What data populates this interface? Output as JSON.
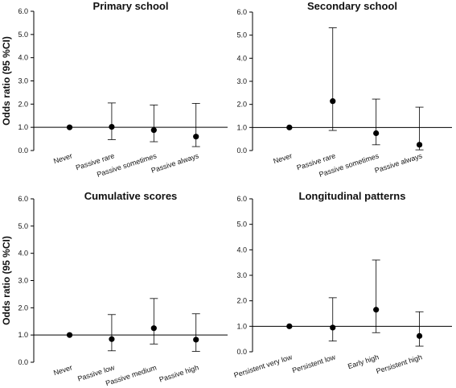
{
  "chart_data": [
    {
      "type": "scatter",
      "title": "Primary school",
      "ylabel": "Odds ratio (95 %CI)",
      "xlabel": "",
      "ylim": [
        0,
        6
      ],
      "yticks": [
        "0.0",
        "1.0",
        "2.0",
        "3.0",
        "4.0",
        "5.0",
        "6.0"
      ],
      "reference_line": 1.0,
      "grid": false,
      "categories": [
        "Never",
        "Passive rare",
        "Passive sometimes",
        "Passive always"
      ],
      "values": [
        1.0,
        1.02,
        0.88,
        0.6
      ],
      "ci_lower": [
        1.0,
        0.47,
        0.38,
        0.17
      ],
      "ci_upper": [
        1.0,
        2.05,
        1.96,
        2.03
      ]
    },
    {
      "type": "scatter",
      "title": "Secondary school",
      "ylabel": "",
      "xlabel": "",
      "ylim": [
        0,
        6
      ],
      "yticks": [
        "0.0",
        "1.0",
        "2.0",
        "3.0",
        "4.0",
        "5.0",
        "6.0"
      ],
      "reference_line": 1.0,
      "grid": false,
      "categories": [
        "Never",
        "Passive rare",
        "Passive sometimes",
        "Passive always"
      ],
      "values": [
        1.0,
        2.14,
        0.75,
        0.25
      ],
      "ci_lower": [
        1.0,
        0.87,
        0.25,
        0.03
      ],
      "ci_upper": [
        1.0,
        5.32,
        2.23,
        1.88
      ]
    },
    {
      "type": "scatter",
      "title": "Cumulative scores",
      "ylabel": "Odds ratio (95 %CI)",
      "xlabel": "",
      "ylim": [
        0,
        6
      ],
      "yticks": [
        "0.0",
        "1.0",
        "2.0",
        "3.0",
        "4.0",
        "5.0",
        "6.0"
      ],
      "reference_line": 1.0,
      "grid": false,
      "categories": [
        "Never",
        "Passive low",
        "Passive medium",
        "Passive high"
      ],
      "values": [
        1.0,
        0.85,
        1.25,
        0.83
      ],
      "ci_lower": [
        1.0,
        0.42,
        0.67,
        0.4
      ],
      "ci_upper": [
        1.0,
        1.75,
        2.34,
        1.78
      ]
    },
    {
      "type": "scatter",
      "title": "Longitudinal patterns",
      "ylabel": "",
      "xlabel": "",
      "ylim": [
        0,
        6
      ],
      "yticks": [
        "0.0",
        "1.0",
        "2.0",
        "3.0",
        "4.0",
        "5.0",
        "6.0"
      ],
      "reference_line": 1.0,
      "grid": false,
      "categories": [
        "Persistent very low",
        "Persistent low",
        "Early high",
        "Persistent high"
      ],
      "values": [
        1.0,
        0.95,
        1.65,
        0.62
      ],
      "ci_lower": [
        1.0,
        0.42,
        0.75,
        0.22
      ],
      "ci_upper": [
        1.0,
        2.12,
        3.6,
        1.57
      ]
    }
  ]
}
